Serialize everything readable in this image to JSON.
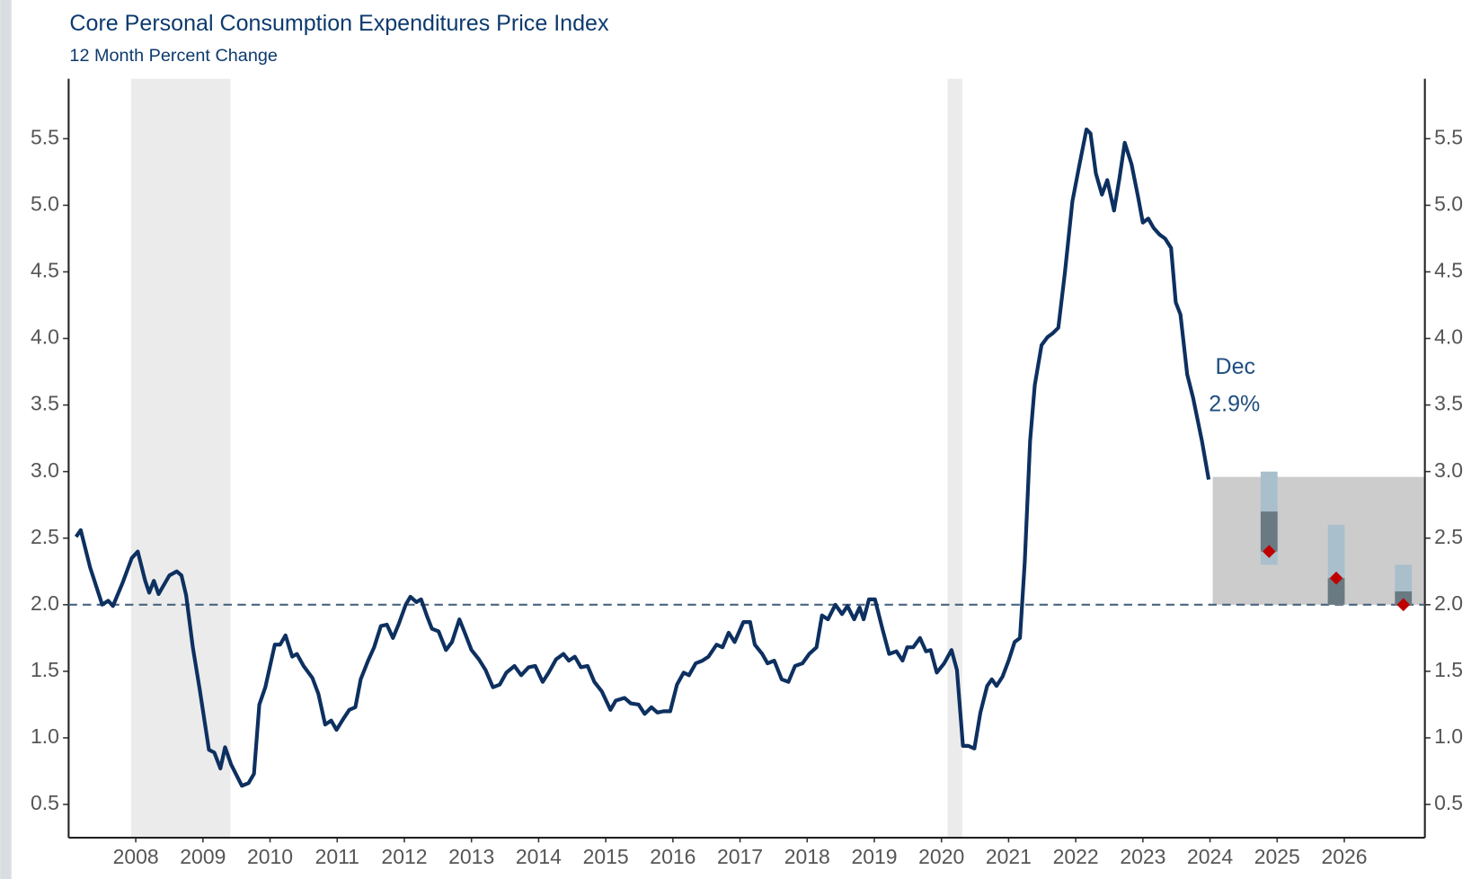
{
  "chart_data": {
    "type": "line",
    "title": "Core Personal Consumption Expenditures Price Index",
    "subtitle": "12 Month Percent Change",
    "annotation": [
      "Dec",
      "2.9%"
    ],
    "xlim": [
      2007,
      2027.2
    ],
    "xticks": [
      2008,
      2009,
      2010,
      2011,
      2012,
      2013,
      2014,
      2015,
      2016,
      2017,
      2018,
      2019,
      2020,
      2021,
      2022,
      2023,
      2024,
      2025,
      2026
    ],
    "ylim": [
      0.25,
      5.95
    ],
    "yticks": [
      0.5,
      {
        "value": 1,
        "label": "1.0"
      },
      1.5,
      {
        "value": 2,
        "label": "2.0"
      },
      2.5,
      {
        "value": 3,
        "label": "3.0"
      },
      3.5,
      {
        "value": 4,
        "label": "4.0"
      },
      4.5,
      {
        "value": 5,
        "label": "5.0"
      },
      5.5
    ],
    "reference_line": 2,
    "recessions": [
      [
        2007.93,
        2009.41
      ],
      [
        2020.09,
        2020.31
      ]
    ],
    "recession_color": "#ebebeb",
    "forecast_band": {
      "x": [
        2024.04,
        2027.2
      ],
      "y": [
        2,
        2.96
      ],
      "color": "#cccccc"
    },
    "forecast": {
      "x": [
        2024.88,
        2025.88,
        2026.88
      ],
      "range_low": [
        2.3,
        2,
        2
      ],
      "range_high": [
        3,
        2.6,
        2.3
      ],
      "central_low": [
        2.4,
        2,
        2
      ],
      "central_high": [
        2.7,
        2.2,
        2.1
      ],
      "median": [
        2.4,
        2.2,
        2
      ],
      "range_color": "#a9bfcb",
      "central_color": "#6a7a82",
      "median_color": "#c00000"
    },
    "series": [
      {
        "name": "Core PCE",
        "color": "#0d3060",
        "x": [
          2007.11,
          2007.18,
          2007.32,
          2007.5,
          2007.59,
          2007.66,
          2007.8,
          2007.94,
          2008.03,
          2008.14,
          2008.2,
          2008.27,
          2008.34,
          2008.5,
          2008.61,
          2008.68,
          2008.75,
          2008.85,
          2008.95,
          2009.09,
          2009.17,
          2009.26,
          2009.33,
          2009.42,
          2009.58,
          2009.68,
          2009.76,
          2009.84,
          2009.93,
          2010.07,
          2010.15,
          2010.23,
          2010.33,
          2010.4,
          2010.5,
          2010.63,
          2010.72,
          2010.82,
          2010.91,
          2010.99,
          2011.1,
          2011.18,
          2011.27,
          2011.35,
          2011.46,
          2011.55,
          2011.65,
          2011.74,
          2011.83,
          2011.92,
          2012.02,
          2012.09,
          2012.18,
          2012.25,
          2012.34,
          2012.41,
          2012.51,
          2012.62,
          2012.71,
          2012.82,
          2012.9,
          2013,
          2013.11,
          2013.21,
          2013.32,
          2013.42,
          2013.52,
          2013.64,
          2013.74,
          2013.85,
          2013.95,
          2014.06,
          2014.15,
          2014.26,
          2014.37,
          2014.45,
          2014.54,
          2014.63,
          2014.73,
          2014.83,
          2014.94,
          2015.07,
          2015.15,
          2015.28,
          2015.37,
          2015.49,
          2015.58,
          2015.68,
          2015.77,
          2015.86,
          2015.96,
          2016.06,
          2016.16,
          2016.24,
          2016.34,
          2016.44,
          2016.53,
          2016.65,
          2016.74,
          2016.83,
          2016.92,
          2017.05,
          2017.15,
          2017.22,
          2017.33,
          2017.41,
          2017.51,
          2017.62,
          2017.72,
          2017.82,
          2017.93,
          2018.03,
          2018.14,
          2018.22,
          2018.31,
          2018.42,
          2018.52,
          2018.6,
          2018.7,
          2018.78,
          2018.84,
          2018.92,
          2019.01,
          2019.12,
          2019.22,
          2019.33,
          2019.42,
          2019.49,
          2019.58,
          2019.68,
          2019.77,
          2019.84,
          2019.93,
          2020.04,
          2020.15,
          2020.23,
          2020.32,
          2020.4,
          2020.49,
          2020.58,
          2020.68,
          2020.75,
          2020.82,
          2020.91,
          2021,
          2021.09,
          2021.17,
          2021.24,
          2021.32,
          2021.39,
          2021.49,
          2021.58,
          2021.66,
          2021.74,
          2021.84,
          2021.95,
          2022.05,
          2022.16,
          2022.22,
          2022.3,
          2022.39,
          2022.47,
          2022.57,
          2022.65,
          2022.73,
          2022.83,
          2022.93,
          2023,
          2023.08,
          2023.16,
          2023.25,
          2023.33,
          2023.42,
          2023.49,
          2023.56,
          2023.66,
          2023.75,
          2023.88,
          2023.98
        ],
        "values": [
          2.51,
          2.56,
          2.28,
          2,
          2.03,
          1.99,
          2.16,
          2.35,
          2.4,
          2.18,
          2.09,
          2.18,
          2.08,
          2.22,
          2.25,
          2.22,
          2.07,
          1.68,
          1.37,
          0.91,
          0.89,
          0.77,
          0.93,
          0.8,
          0.64,
          0.66,
          0.73,
          1.25,
          1.38,
          1.7,
          1.7,
          1.77,
          1.61,
          1.63,
          1.54,
          1.45,
          1.33,
          1.1,
          1.13,
          1.06,
          1.15,
          1.21,
          1.23,
          1.44,
          1.58,
          1.68,
          1.84,
          1.85,
          1.75,
          1.86,
          2,
          2.06,
          2.02,
          2.04,
          1.91,
          1.82,
          1.8,
          1.66,
          1.72,
          1.89,
          1.79,
          1.66,
          1.59,
          1.51,
          1.38,
          1.4,
          1.49,
          1.54,
          1.47,
          1.53,
          1.54,
          1.42,
          1.49,
          1.59,
          1.63,
          1.58,
          1.61,
          1.53,
          1.54,
          1.42,
          1.35,
          1.21,
          1.28,
          1.3,
          1.26,
          1.25,
          1.18,
          1.23,
          1.19,
          1.2,
          1.2,
          1.4,
          1.49,
          1.47,
          1.56,
          1.58,
          1.61,
          1.7,
          1.68,
          1.79,
          1.72,
          1.87,
          1.87,
          1.7,
          1.63,
          1.56,
          1.58,
          1.44,
          1.42,
          1.54,
          1.56,
          1.63,
          1.68,
          1.92,
          1.89,
          2,
          1.93,
          1.99,
          1.89,
          1.98,
          1.89,
          2.04,
          2.04,
          1.82,
          1.63,
          1.65,
          1.58,
          1.68,
          1.68,
          1.75,
          1.65,
          1.66,
          1.49,
          1.56,
          1.66,
          1.51,
          0.94,
          0.94,
          0.92,
          1.19,
          1.39,
          1.44,
          1.39,
          1.46,
          1.58,
          1.72,
          1.75,
          2.32,
          3.23,
          3.65,
          3.95,
          4.01,
          4.04,
          4.08,
          4.5,
          5.03,
          5.29,
          5.57,
          5.54,
          5.24,
          5.08,
          5.19,
          4.96,
          5.2,
          5.47,
          5.31,
          5.06,
          4.87,
          4.9,
          4.83,
          4.78,
          4.75,
          4.68,
          4.27,
          4.18,
          3.73,
          3.55,
          3.23,
          2.94
        ]
      }
    ]
  }
}
